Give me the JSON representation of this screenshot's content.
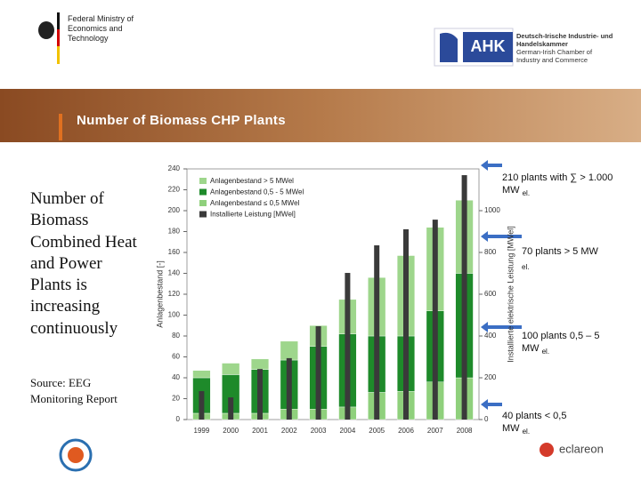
{
  "header": {
    "ministry": "Federal Ministry of Economics and Technology",
    "ahk": "AHK",
    "chamber_de": "Deutsch-Irische Industrie- und Handelskammer",
    "chamber_en": "German-Irish Chamber of Industry and Commerce"
  },
  "title": "Number of Biomass CHP Plants",
  "body": "Number of Biomass Combined Heat and Power Plants is increasing continuously",
  "source": "Source: EEG Monitoring Report",
  "annotations": [
    {
      "text": "210 plants with ∑ > 1.000 MW",
      "sub": "el."
    },
    {
      "text": "70  plants > 5 MW",
      "sub": "el."
    },
    {
      "text": "100  plants 0,5 – 5 MW",
      "sub": "el."
    },
    {
      "text": "40  plants < 0,5 MW",
      "sub": "el."
    }
  ],
  "footer": {
    "eclareon": "eclareon"
  },
  "chart_data": {
    "type": "bar",
    "stacked": true,
    "categories": [
      "1999",
      "2000",
      "2001",
      "2002",
      "2003",
      "2004",
      "2005",
      "2006",
      "2007",
      "2008"
    ],
    "series": [
      {
        "name": "Anlagenbestand > 5 MWel",
        "color": "#9ed68c",
        "values": [
          7,
          11,
          10,
          18,
          20,
          33,
          56,
          77,
          80,
          70
        ]
      },
      {
        "name": "Anlagenbestand 0,5 - 5 MWel",
        "color": "#1e8a2a",
        "values": [
          34,
          37,
          42,
          47,
          60,
          70,
          54,
          53,
          68,
          100
        ]
      },
      {
        "name": "Anlagenbestand ≤ 0,5 MWel",
        "color": "#8fd07c",
        "values": [
          6,
          6,
          6,
          10,
          10,
          12,
          26,
          27,
          36,
          40
        ]
      },
      {
        "name": "Installierte Leistung [MWel]",
        "color": "#3a3a3a",
        "axis": "y2",
        "values": [
          136,
          106,
          242,
          294,
          447,
          702,
          834,
          911,
          957,
          1170
        ]
      }
    ],
    "ylabel": "Anlagenbestand [-]",
    "y2label": "Installierte elektrische Leistung [MWel]",
    "ylim": [
      0,
      240
    ],
    "yticks": [
      0,
      20,
      40,
      60,
      80,
      100,
      120,
      140,
      160,
      180,
      200,
      220,
      240
    ],
    "y2lim": [
      0,
      1200
    ],
    "y2ticks": [
      0,
      200,
      400,
      600,
      800,
      1000
    ],
    "legend": "upper left",
    "grid": false
  }
}
